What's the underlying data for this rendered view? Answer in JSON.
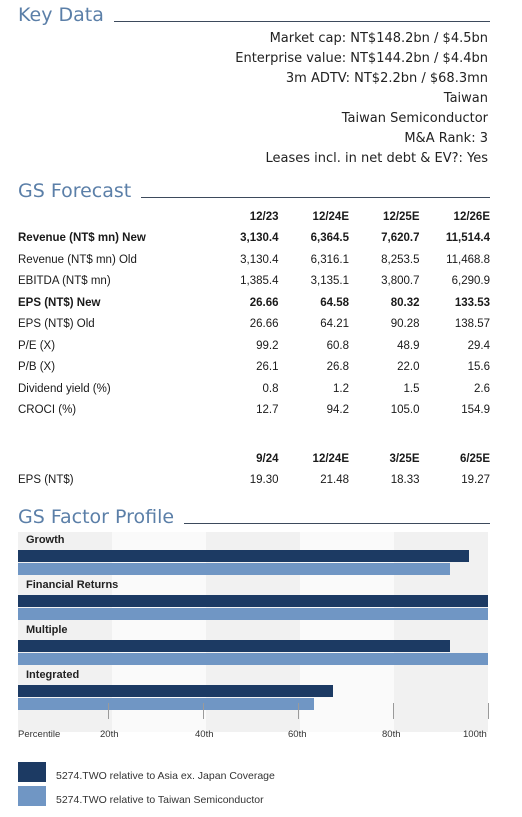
{
  "key_data": {
    "title": "Key Data",
    "lines": [
      "Market cap: NT$148.2bn / $4.5bn",
      "Enterprise value: NT$144.2bn / $4.4bn",
      "3m ADTV: NT$2.2bn / $68.3mn",
      "Taiwan",
      "Taiwan Semiconductor",
      "M&A Rank: 3",
      "Leases incl. in net debt & EV?: Yes"
    ]
  },
  "gs_forecast": {
    "title": "GS Forecast",
    "headers": [
      "12/23",
      "12/24E",
      "12/25E",
      "12/26E"
    ],
    "rows": [
      {
        "label": "Revenue (NT$ mn) New",
        "bold": true,
        "values": [
          "3,130.4",
          "6,364.5",
          "7,620.7",
          "11,514.4"
        ]
      },
      {
        "label": "Revenue (NT$ mn) Old",
        "bold": false,
        "values": [
          "3,130.4",
          "6,316.1",
          "8,253.5",
          "11,468.8"
        ]
      },
      {
        "label": "EBITDA (NT$ mn)",
        "bold": false,
        "values": [
          "1,385.4",
          "3,135.1",
          "3,800.7",
          "6,290.9"
        ]
      },
      {
        "label": "EPS (NT$) New",
        "bold": true,
        "values": [
          "26.66",
          "64.58",
          "80.32",
          "133.53"
        ]
      },
      {
        "label": "EPS (NT$) Old",
        "bold": false,
        "values": [
          "26.66",
          "64.21",
          "90.28",
          "138.57"
        ]
      },
      {
        "label": "P/E (X)",
        "bold": false,
        "values": [
          "99.2",
          "60.8",
          "48.9",
          "29.4"
        ]
      },
      {
        "label": "P/B (X)",
        "bold": false,
        "values": [
          "26.1",
          "26.8",
          "22.0",
          "15.6"
        ]
      },
      {
        "label": "Dividend yield (%)",
        "bold": false,
        "values": [
          "0.8",
          "1.2",
          "1.5",
          "2.6"
        ]
      },
      {
        "label": "CROCI (%)",
        "bold": false,
        "values": [
          "12.7",
          "94.2",
          "105.0",
          "154.9"
        ]
      }
    ],
    "quarterly_headers": [
      "9/24",
      "12/24E",
      "3/25E",
      "6/25E"
    ],
    "quarterly_row": {
      "label": "EPS (NT$)",
      "values": [
        "19.30",
        "21.48",
        "18.33",
        "19.27"
      ]
    }
  },
  "factor_profile": {
    "title": "GS Factor Profile",
    "colors": {
      "dark": "#1c3a63",
      "light": "#7096c4"
    },
    "axis_label": "Percentile",
    "ticks": [
      "20th",
      "40th",
      "60th",
      "80th",
      "100th"
    ]
  },
  "chart_data": {
    "type": "bar",
    "orientation": "horizontal",
    "categories": [
      "Growth",
      "Financial Returns",
      "Multiple",
      "Integrated"
    ],
    "series": [
      {
        "name": "5274.TWO relative to Asia ex. Japan Coverage",
        "values": [
          96,
          100,
          92,
          67
        ]
      },
      {
        "name": "5274.TWO relative to Taiwan Semiconductor",
        "values": [
          92,
          100,
          100,
          63
        ]
      }
    ],
    "xlabel": "Percentile",
    "xlim": [
      0,
      100
    ]
  }
}
